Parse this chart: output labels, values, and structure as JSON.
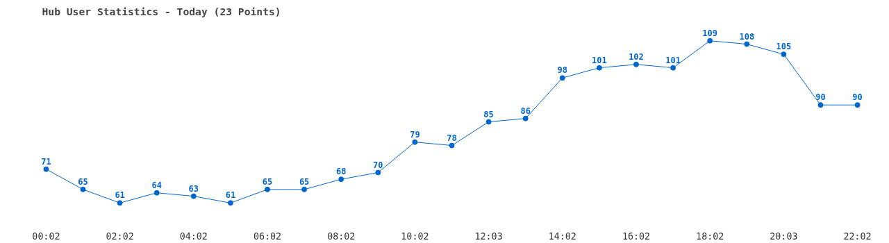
{
  "chart_data": {
    "type": "line",
    "title": "Hub User Statistics - Today (23 Points)",
    "categories": [
      "00:02",
      null,
      "02:02",
      null,
      "04:02",
      null,
      "06:02",
      null,
      "08:02",
      null,
      "10:02",
      null,
      "12:03",
      null,
      "14:02",
      null,
      "16:02",
      null,
      "18:02",
      null,
      "20:03",
      null,
      "22:02"
    ],
    "series": [
      {
        "color": "#0066cc",
        "values": [
          71,
          65,
          61,
          64,
          63,
          61,
          65,
          65,
          68,
          70,
          79,
          78,
          85,
          86,
          98,
          101,
          102,
          101,
          109,
          108,
          105,
          90,
          90
        ]
      }
    ],
    "tick_labels": "x",
    "data_labels": true,
    "marker": "circle",
    "line_style": "solid"
  }
}
